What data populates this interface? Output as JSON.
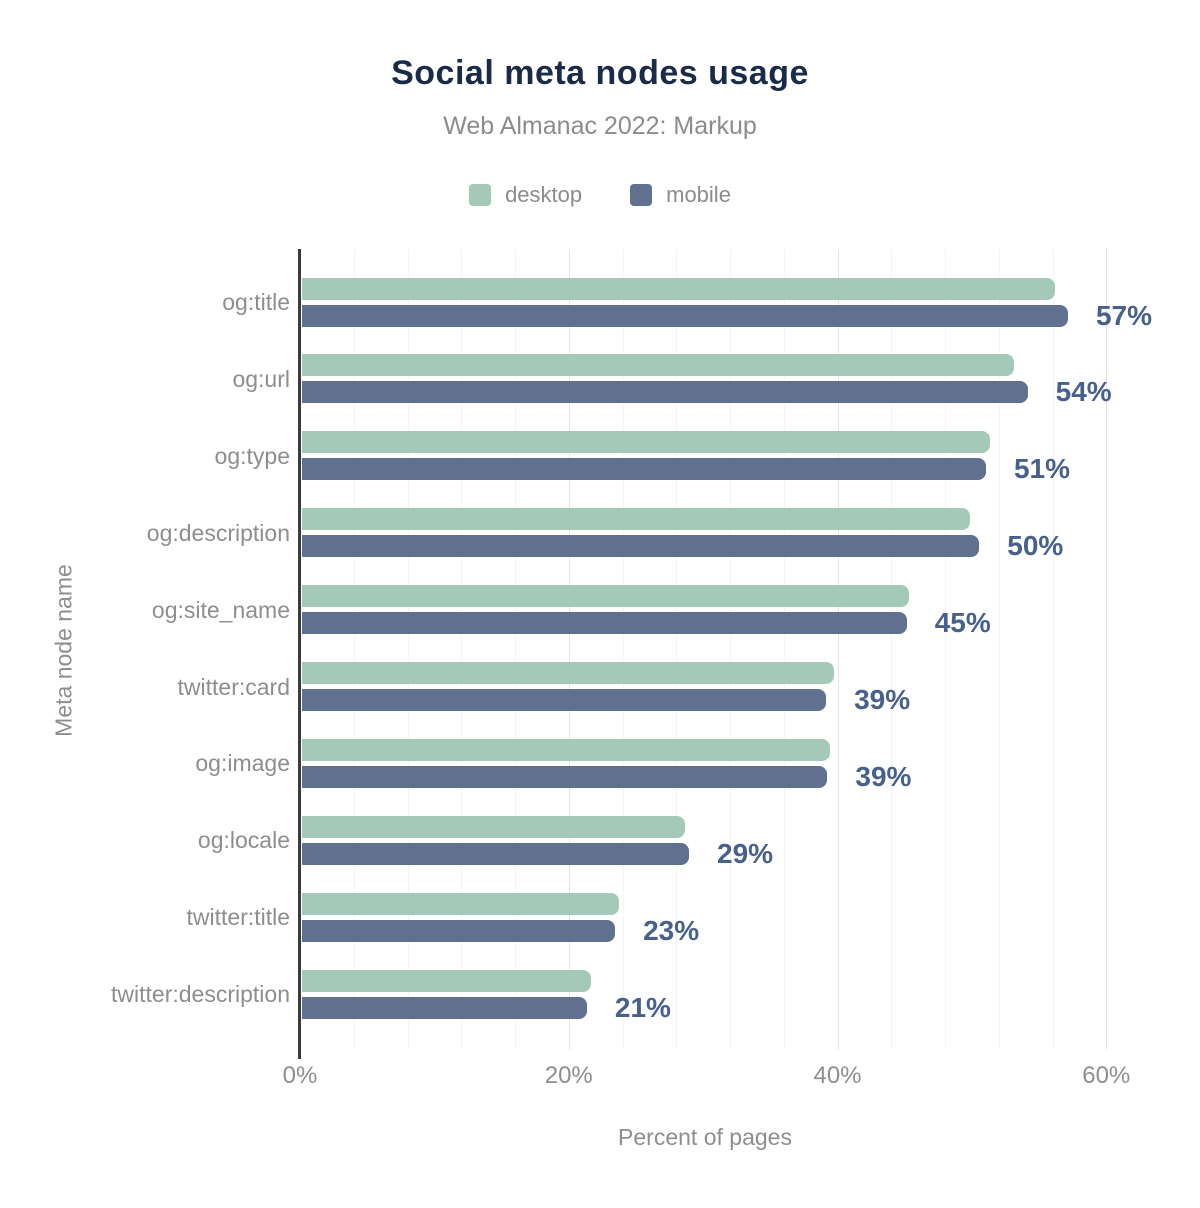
{
  "chart_data": {
    "type": "bar",
    "orientation": "horizontal",
    "title": "Social meta nodes usage",
    "subtitle": "Web Almanac 2022: Markup",
    "xlabel": "Percent of pages",
    "ylabel": "Meta node name",
    "xlim": [
      0,
      64
    ],
    "x_ticks": [
      {
        "value": 0,
        "label": "0%"
      },
      {
        "value": 20,
        "label": "20%"
      },
      {
        "value": 40,
        "label": "40%"
      },
      {
        "value": 60,
        "label": "60%"
      }
    ],
    "minor_grid_step": 4,
    "major_grid_step": 20,
    "grid": true,
    "legend_position": "top",
    "categories": [
      "og:title",
      "og:url",
      "og:type",
      "og:description",
      "og:site_name",
      "twitter:card",
      "og:image",
      "og:locale",
      "twitter:title",
      "twitter:description"
    ],
    "series": [
      {
        "name": "desktop",
        "color": "#a4c9b8",
        "values": [
          56.0,
          53.0,
          51.2,
          49.7,
          45.2,
          39.6,
          39.3,
          28.5,
          23.6,
          21.5
        ]
      },
      {
        "name": "mobile",
        "color": "#5f718e",
        "values": [
          57.0,
          54.0,
          50.9,
          50.4,
          45.0,
          39.0,
          39.1,
          28.8,
          23.3,
          21.2
        ]
      }
    ],
    "data_labels": [
      "57%",
      "54%",
      "51%",
      "50%",
      "45%",
      "39%",
      "39%",
      "29%",
      "23%",
      "21%"
    ]
  },
  "colors": {
    "title": "#1a2b49",
    "subtitle": "#8c8c8c",
    "axis_labels": "#8e8e8e",
    "value_label": "#47618c",
    "axis_line": "#3b3b3b",
    "grid_major": "#e4e4e4",
    "grid_minor": "#f4f4f4",
    "background": "#ffffff"
  }
}
